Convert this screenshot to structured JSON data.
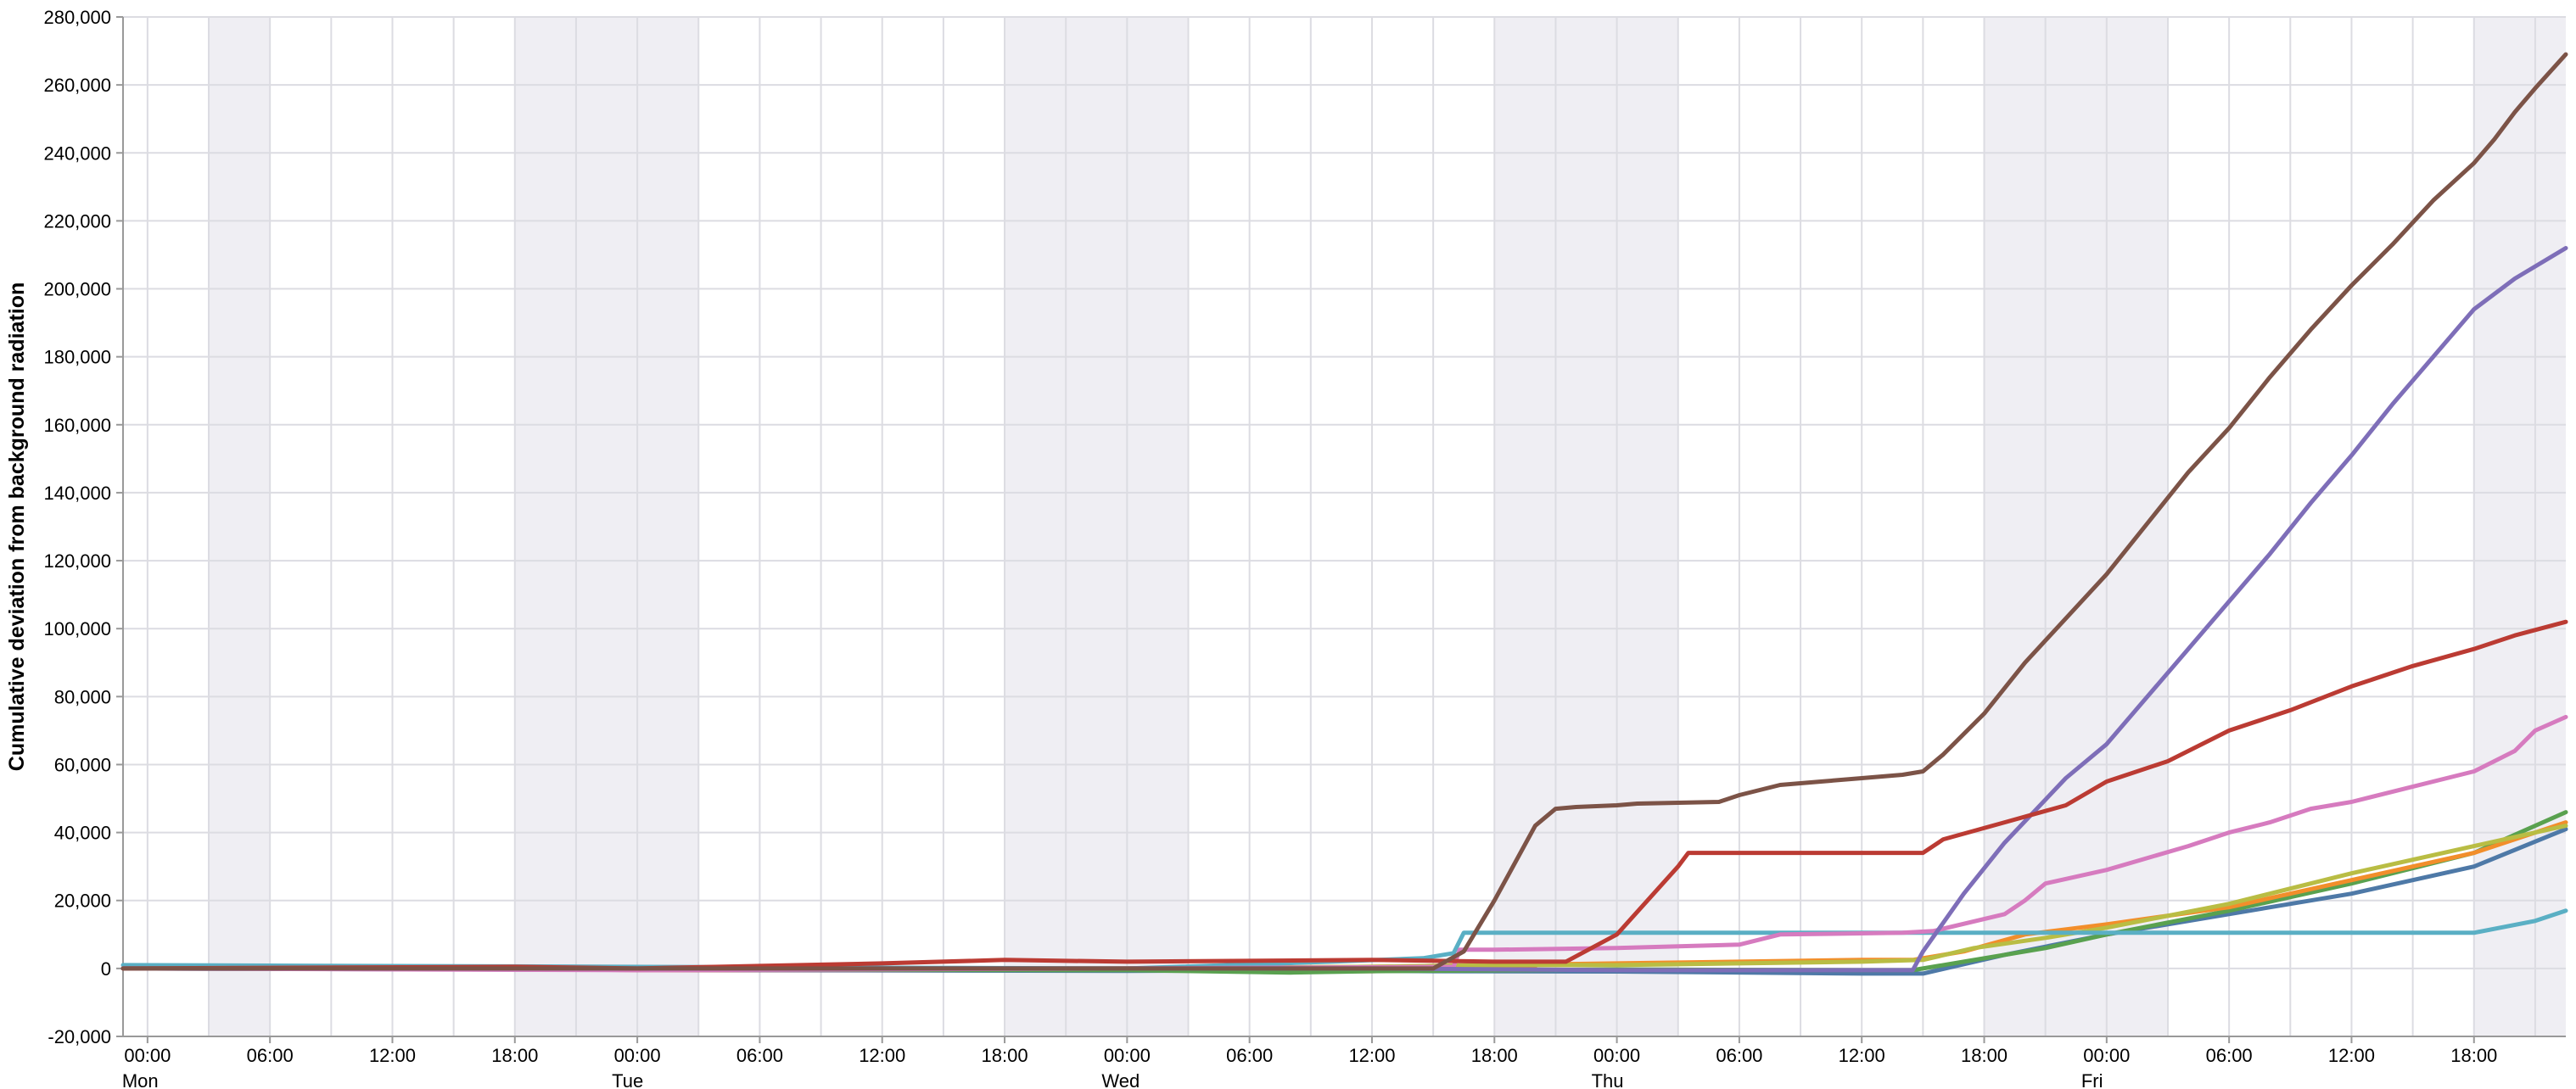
{
  "chart_data": {
    "type": "line",
    "title": "",
    "xlabel": "",
    "ylabel": "Cumulative deviation from background radiation",
    "x_unit": "hours from Mon 00:00",
    "xlim": [
      -1.2,
      118.5
    ],
    "ylim": [
      -20000,
      280000
    ],
    "yticks": [
      -20000,
      0,
      20000,
      40000,
      60000,
      80000,
      100000,
      120000,
      140000,
      160000,
      180000,
      200000,
      220000,
      240000,
      260000,
      280000
    ],
    "ytick_labels": [
      "-20,000",
      "0",
      "20,000",
      "40,000",
      "60,000",
      "80,000",
      "100,000",
      "120,000",
      "140,000",
      "160,000",
      "180,000",
      "200,000",
      "220,000",
      "240,000",
      "260,000",
      "280,000"
    ],
    "xticks": [
      0,
      6,
      12,
      18,
      24,
      30,
      36,
      42,
      48,
      54,
      60,
      66,
      72,
      78,
      84,
      90,
      96,
      102,
      108,
      114
    ],
    "xtick_time_labels": [
      "00:00",
      "06:00",
      "12:00",
      "18:00",
      "00:00",
      "06:00",
      "12:00",
      "18:00",
      "00:00",
      "06:00",
      "12:00",
      "18:00",
      "00:00",
      "06:00",
      "12:00",
      "18:00",
      "00:00",
      "06:00",
      "12:00",
      "18:00"
    ],
    "day_labels": [
      {
        "x": 0,
        "label": "Mon"
      },
      {
        "x": 24,
        "label": "Tue"
      },
      {
        "x": 48,
        "label": "Wed"
      },
      {
        "x": 72,
        "label": "Thu"
      },
      {
        "x": 96,
        "label": "Fri"
      }
    ],
    "vertical_grid_step_hours": 3,
    "shaded_bands": [
      [
        3,
        6
      ],
      [
        18,
        27
      ],
      [
        42,
        51
      ],
      [
        66,
        75
      ],
      [
        90,
        99
      ],
      [
        114,
        118.5
      ]
    ],
    "grid": true,
    "legend": "none",
    "colors": {
      "band": "#efeef3",
      "grid": "#dcdce2",
      "axis": "#999999"
    },
    "series": [
      {
        "color": "#e15759",
        "values": [
          [
            -1.2,
            0
          ],
          [
            17,
            0
          ],
          [
            24,
            -500
          ],
          [
            48,
            -600
          ],
          [
            60,
            -800
          ],
          [
            66,
            0
          ],
          [
            68,
            0
          ]
        ]
      },
      {
        "color": "#4e79a7",
        "values": [
          [
            -1.2,
            0
          ],
          [
            24,
            -400
          ],
          [
            48,
            -700
          ],
          [
            56,
            -600
          ],
          [
            63,
            -800
          ],
          [
            72,
            -900
          ],
          [
            84,
            -1500
          ],
          [
            87,
            -1500
          ],
          [
            91,
            4000
          ],
          [
            96,
            10000
          ],
          [
            102,
            16000
          ],
          [
            108,
            22000
          ],
          [
            114,
            30000
          ],
          [
            118.5,
            41000
          ]
        ]
      },
      {
        "color": "#59a14f",
        "values": [
          [
            -1.2,
            0
          ],
          [
            24,
            -300
          ],
          [
            48,
            -500
          ],
          [
            56,
            -1200
          ],
          [
            60,
            -800
          ],
          [
            72,
            -300
          ],
          [
            84,
            -500
          ],
          [
            86.5,
            -500
          ],
          [
            89,
            2000
          ],
          [
            93,
            6000
          ],
          [
            96,
            10000
          ],
          [
            102,
            17000
          ],
          [
            108,
            25000
          ],
          [
            114,
            34000
          ],
          [
            118.5,
            46000
          ]
        ]
      },
      {
        "color": "#f28e2b",
        "values": [
          [
            -1.2,
            0
          ],
          [
            48,
            0
          ],
          [
            60,
            500
          ],
          [
            66,
            1000
          ],
          [
            72,
            1500
          ],
          [
            84,
            2500
          ],
          [
            86.5,
            2500
          ],
          [
            89,
            5000
          ],
          [
            92,
            10000
          ],
          [
            96,
            13000
          ],
          [
            102,
            18000
          ],
          [
            108,
            26000
          ],
          [
            114,
            34000
          ],
          [
            118.5,
            43000
          ]
        ]
      },
      {
        "color": "#b9bd44",
        "values": [
          [
            -1.2,
            0
          ],
          [
            24,
            -200
          ],
          [
            48,
            0
          ],
          [
            60,
            500
          ],
          [
            66,
            1000
          ],
          [
            72,
            1000
          ],
          [
            84,
            2000
          ],
          [
            87,
            2500
          ],
          [
            89.5,
            6000
          ],
          [
            93,
            9000
          ],
          [
            96,
            12000
          ],
          [
            102,
            19000
          ],
          [
            108,
            28000
          ],
          [
            114,
            36000
          ],
          [
            118.5,
            42000
          ]
        ]
      },
      {
        "color": "#5aafc4",
        "values": [
          [
            -1.2,
            1000
          ],
          [
            48,
            0
          ],
          [
            58,
            2000
          ],
          [
            62.5,
            3000
          ],
          [
            64,
            4500
          ],
          [
            64.5,
            10500
          ],
          [
            66,
            10500
          ],
          [
            80,
            10500
          ],
          [
            90,
            10500
          ],
          [
            96,
            10500
          ],
          [
            108,
            10500
          ],
          [
            114,
            10500
          ],
          [
            117,
            14000
          ],
          [
            118.5,
            17000
          ]
        ]
      },
      {
        "color": "#d67bbf",
        "values": [
          [
            -1.2,
            0
          ],
          [
            24,
            -500
          ],
          [
            48,
            0
          ],
          [
            64,
            500
          ],
          [
            64.3,
            5500
          ],
          [
            66,
            5500
          ],
          [
            72,
            6000
          ],
          [
            78,
            7000
          ],
          [
            80,
            10000
          ],
          [
            86,
            10500
          ],
          [
            87.5,
            11000
          ],
          [
            91,
            16000
          ],
          [
            92,
            20000
          ],
          [
            93,
            25000
          ],
          [
            96,
            29000
          ],
          [
            100,
            36000
          ],
          [
            102,
            40000
          ],
          [
            104,
            43000
          ],
          [
            106,
            47000
          ],
          [
            108,
            49000
          ],
          [
            114,
            58000
          ],
          [
            116,
            64000
          ],
          [
            117,
            70000
          ],
          [
            118.5,
            74000
          ]
        ]
      },
      {
        "color": "#7e6eb8",
        "values": [
          [
            -1.2,
            0
          ],
          [
            60,
            0
          ],
          [
            72,
            -500
          ],
          [
            86.5,
            -500
          ],
          [
            87,
            5000
          ],
          [
            89,
            22000
          ],
          [
            91,
            37000
          ],
          [
            94,
            56000
          ],
          [
            96,
            66000
          ],
          [
            98,
            80000
          ],
          [
            100,
            94000
          ],
          [
            102,
            108000
          ],
          [
            104,
            122000
          ],
          [
            106,
            137000
          ],
          [
            108,
            151000
          ],
          [
            110,
            166000
          ],
          [
            112,
            180000
          ],
          [
            114,
            194000
          ],
          [
            116,
            203000
          ],
          [
            118.5,
            212000
          ]
        ]
      },
      {
        "color": "#bb3b33",
        "values": [
          [
            -1.2,
            0
          ],
          [
            18,
            500
          ],
          [
            24,
            0
          ],
          [
            36,
            1500
          ],
          [
            42,
            2500
          ],
          [
            48,
            2000
          ],
          [
            60,
            2500
          ],
          [
            66,
            2000
          ],
          [
            69.5,
            2000
          ],
          [
            72,
            10000
          ],
          [
            75,
            30000
          ],
          [
            75.5,
            34000
          ],
          [
            78,
            34000
          ],
          [
            81,
            34000
          ],
          [
            87,
            34000
          ],
          [
            88,
            38000
          ],
          [
            91,
            43000
          ],
          [
            94,
            48000
          ],
          [
            96,
            55000
          ],
          [
            99,
            61000
          ],
          [
            102,
            70000
          ],
          [
            105,
            76000
          ],
          [
            108,
            83000
          ],
          [
            111,
            89000
          ],
          [
            114,
            94000
          ],
          [
            116,
            98000
          ],
          [
            118.5,
            102000
          ]
        ]
      },
      {
        "color": "#7c5347",
        "values": [
          [
            -1.2,
            0
          ],
          [
            48,
            0
          ],
          [
            63,
            0
          ],
          [
            64.5,
            5000
          ],
          [
            66,
            20000
          ],
          [
            68,
            42000
          ],
          [
            69,
            47000
          ],
          [
            70,
            47500
          ],
          [
            72,
            48000
          ],
          [
            73,
            48500
          ],
          [
            77,
            49000
          ],
          [
            78,
            51000
          ],
          [
            80,
            54000
          ],
          [
            82,
            55000
          ],
          [
            84,
            56000
          ],
          [
            86,
            57000
          ],
          [
            87,
            58000
          ],
          [
            88,
            63000
          ],
          [
            90,
            75000
          ],
          [
            92,
            90000
          ],
          [
            94,
            103000
          ],
          [
            96,
            116000
          ],
          [
            98,
            131000
          ],
          [
            100,
            146000
          ],
          [
            102,
            159000
          ],
          [
            104,
            174000
          ],
          [
            106,
            188000
          ],
          [
            108,
            201000
          ],
          [
            110,
            213000
          ],
          [
            112,
            226000
          ],
          [
            114,
            237000
          ],
          [
            115,
            244000
          ],
          [
            116,
            252000
          ],
          [
            117,
            259000
          ],
          [
            118.5,
            269000
          ]
        ]
      }
    ]
  }
}
